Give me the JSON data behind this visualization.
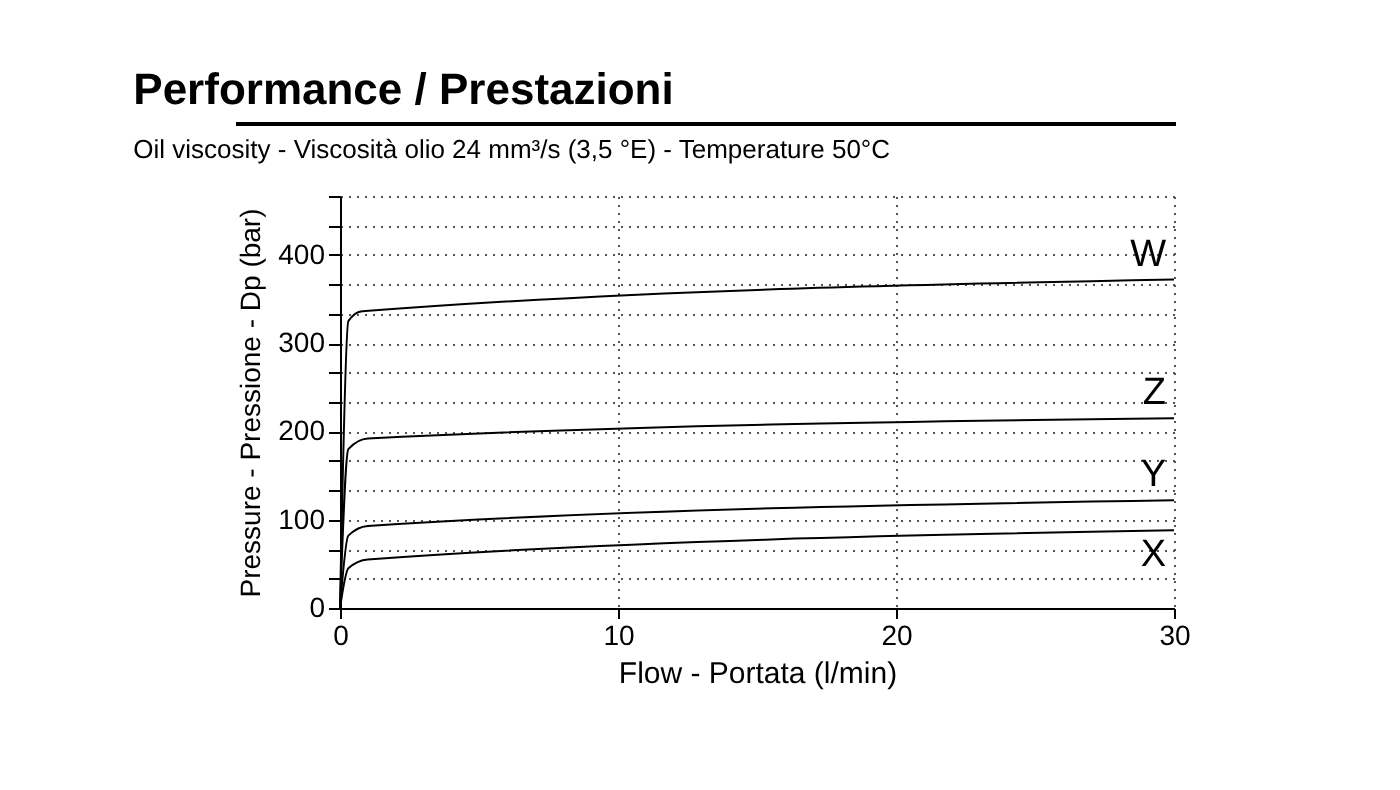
{
  "chart_data": {
    "type": "line",
    "title": "Performance / Prestazioni",
    "subtitle": "Oil viscosity - Viscosità olio 24 mm³/s (3,5 °E) - Temperature 50°C",
    "xlabel": "Flow - Portata (l/min)",
    "ylabel": "Pressure - Pressione - Dp (bar)",
    "series": [
      {
        "name": "W",
        "color": "#000000",
        "x": [
          0,
          0.3,
          0.8,
          30
        ],
        "values": [
          0,
          325,
          336,
          372
        ]
      },
      {
        "name": "Z",
        "color": "#000000",
        "x": [
          0,
          0.3,
          1,
          30
        ],
        "values": [
          0,
          180,
          192,
          215
        ]
      },
      {
        "name": "Y",
        "color": "#000000",
        "x": [
          0,
          0.3,
          1,
          30
        ],
        "values": [
          0,
          82,
          93,
          122
        ]
      },
      {
        "name": "X",
        "color": "#000000",
        "x": [
          0,
          0.3,
          1,
          30
        ],
        "values": [
          0,
          45,
          55,
          88
        ]
      }
    ],
    "xlim": [
      0,
      30
    ],
    "xticks": [
      0,
      10,
      20,
      30
    ],
    "ylim": [
      0,
      466.67
    ],
    "yticks": [
      0,
      {
        "value": 33.33,
        "label": null
      },
      {
        "value": 66.67,
        "label": null
      },
      100,
      {
        "value": 133.33,
        "label": null
      },
      {
        "value": 166.67,
        "label": null
      },
      200,
      {
        "value": 233.33,
        "label": null
      },
      {
        "value": 266.67,
        "label": null
      },
      300,
      {
        "value": 333.33,
        "label": null
      },
      {
        "value": 366.67,
        "label": null
      },
      400,
      {
        "value": 433.33,
        "label": null
      },
      {
        "value": 466.67,
        "label": null
      }
    ],
    "grid": true
  }
}
